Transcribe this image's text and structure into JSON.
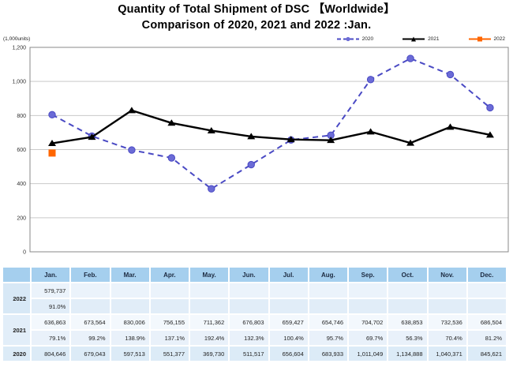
{
  "chart_data": {
    "type": "line",
    "title": "Quantity of Total Shipment of DSC 【Worldwide】",
    "subtitle": "Comparison of 2020, 2021 and 2022 :Jan.",
    "unit_label": "(1,000units)",
    "categories": [
      "Jan.",
      "Feb.",
      "Mar.",
      "Apr.",
      "May.",
      "Jun.",
      "Jul.",
      "Aug.",
      "Sep.",
      "Oct.",
      "Nov.",
      "Dec."
    ],
    "xlabel": "",
    "ylabel": "(1,000units)",
    "ylim": [
      0,
      1200
    ],
    "ytick_step": 200,
    "ytick_labels": [
      "0",
      "200",
      "400",
      "600",
      "800",
      "1,000",
      "1,200"
    ],
    "grid": true,
    "legend_position": "top-right",
    "colors": {
      "y2020": "#4a4ac4",
      "y2020_fill": "#6b6bd6",
      "y2021": "#000000",
      "y2022": "#ff6600"
    },
    "series": [
      {
        "name": "2020",
        "color": "#4a4ac4",
        "fill": "#6b6bd6",
        "marker": "circle",
        "dash": true,
        "values": [
          804.646,
          679.043,
          597.513,
          551.377,
          369.73,
          511.517,
          656.604,
          683.933,
          1011.049,
          1134.888,
          1040.371,
          845.621
        ]
      },
      {
        "name": "2021",
        "color": "#000000",
        "fill": "#000000",
        "marker": "triangle",
        "dash": false,
        "values": [
          636.863,
          673.564,
          830.006,
          756.155,
          711.362,
          676.803,
          659.427,
          654.746,
          704.702,
          638.853,
          732.536,
          686.504
        ]
      },
      {
        "name": "2022",
        "color": "#ff6600",
        "fill": "#ff6600",
        "marker": "square",
        "dash": false,
        "values": [
          579.737,
          null,
          null,
          null,
          null,
          null,
          null,
          null,
          null,
          null,
          null,
          null
        ]
      }
    ]
  },
  "table": {
    "month_headers": [
      "Jan.",
      "Feb.",
      "Mar.",
      "Apr.",
      "May.",
      "Jun.",
      "Jul.",
      "Aug.",
      "Sep.",
      "Oct.",
      "Nov.",
      "Dec."
    ],
    "groups": [
      {
        "year": "2022",
        "values": [
          "579,737",
          "",
          "",
          "",
          "",
          "",
          "",
          "",
          "",
          "",
          "",
          ""
        ],
        "pct": [
          "91.0%",
          "",
          "",
          "",
          "",
          "",
          "",
          "",
          "",
          "",
          "",
          ""
        ]
      },
      {
        "year": "2021",
        "values": [
          "636,863",
          "673,564",
          "830,006",
          "756,155",
          "711,362",
          "676,803",
          "659,427",
          "654,746",
          "704,702",
          "638,853",
          "732,536",
          "686,504"
        ],
        "pct": [
          "79.1%",
          "99.2%",
          "138.9%",
          "137.1%",
          "192.4%",
          "132.3%",
          "100.4%",
          "95.7%",
          "69.7%",
          "56.3%",
          "70.4%",
          "81.2%"
        ]
      },
      {
        "year": "2020",
        "values": [
          "804,646",
          "679,043",
          "597,513",
          "551,377",
          "369,730",
          "511,517",
          "656,604",
          "683,933",
          "1,011,049",
          "1,134,888",
          "1,040,371",
          "845,621"
        ],
        "pct": null
      }
    ]
  }
}
